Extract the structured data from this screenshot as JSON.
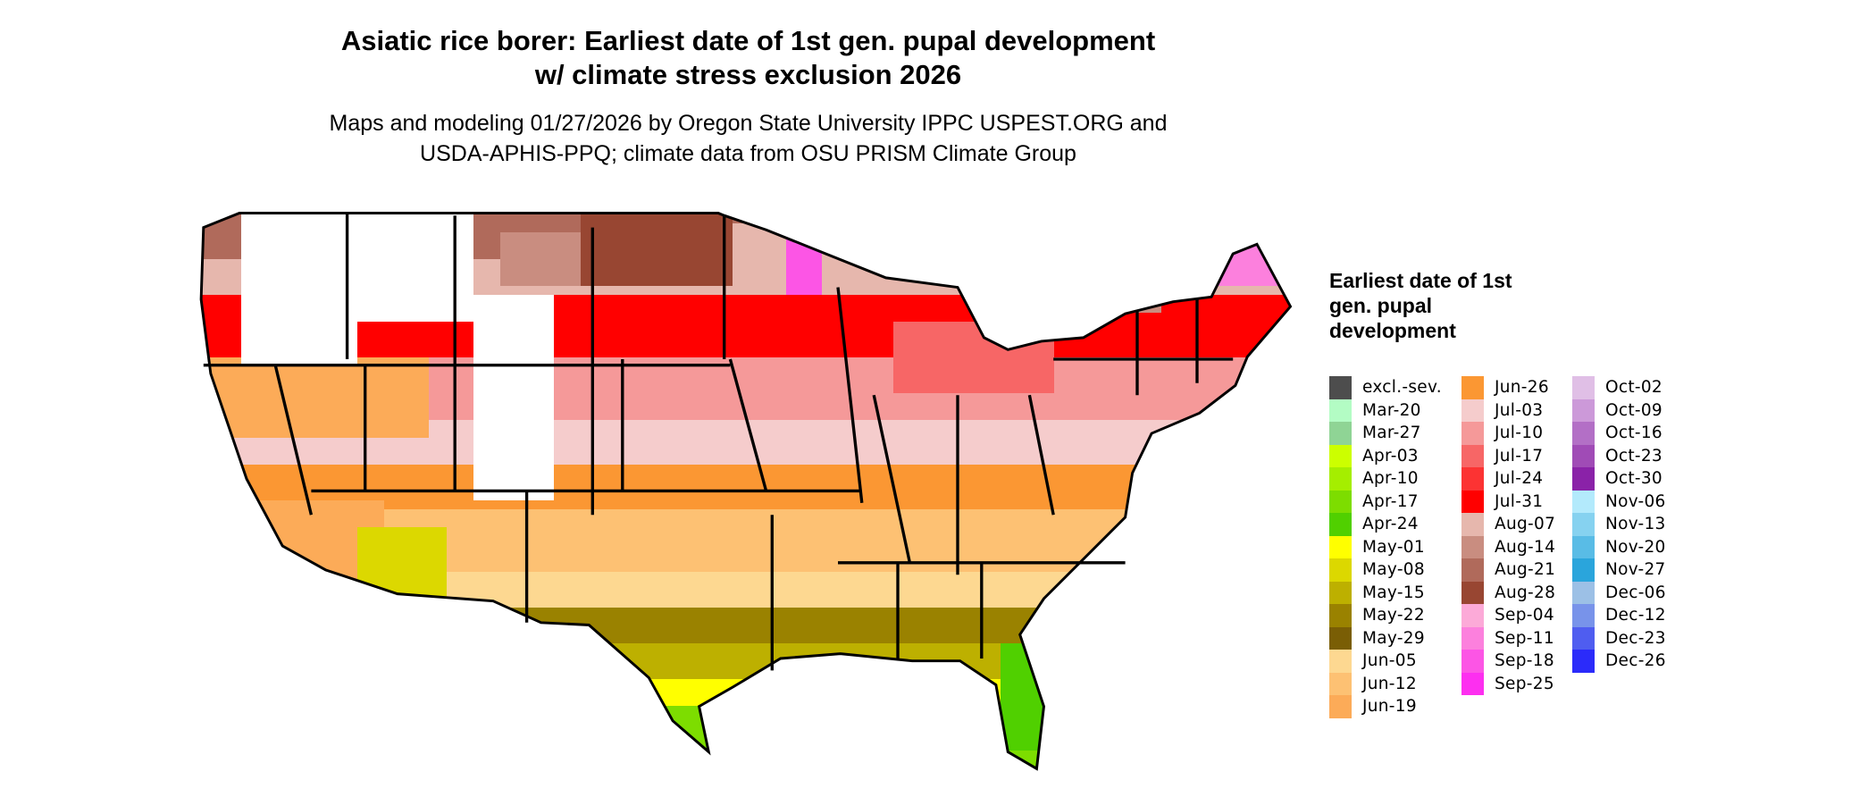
{
  "title_line1": "Asiatic rice borer: Earliest date of 1st gen. pupal development",
  "title_line2": "w/ climate stress exclusion 2026",
  "subtitle_line1": "Maps and modeling 01/27/2026 by Oregon State University IPPC USPEST.ORG and",
  "subtitle_line2": "USDA-APHIS-PPQ; climate data from OSU PRISM Climate Group",
  "legend": {
    "title": "Earliest date of 1st gen. pupal development",
    "items": [
      {
        "label": "excl.-sev.",
        "color": "#4d4d4d"
      },
      {
        "label": "Mar-20",
        "color": "#b3fcc4"
      },
      {
        "label": "Mar-27",
        "color": "#8fd495"
      },
      {
        "label": "Apr-03",
        "color": "#ccff00"
      },
      {
        "label": "Apr-10",
        "color": "#a5ee00"
      },
      {
        "label": "Apr-17",
        "color": "#7ddd00"
      },
      {
        "label": "Apr-24",
        "color": "#50d000"
      },
      {
        "label": "May-01",
        "color": "#ffff00"
      },
      {
        "label": "May-08",
        "color": "#dcd800"
      },
      {
        "label": "May-15",
        "color": "#bdb000"
      },
      {
        "label": "May-22",
        "color": "#9a8200"
      },
      {
        "label": "May-29",
        "color": "#7a5e05"
      },
      {
        "label": "Jun-05",
        "color": "#fdd891"
      },
      {
        "label": "Jun-12",
        "color": "#fdc173"
      },
      {
        "label": "Jun-19",
        "color": "#fcab58"
      },
      {
        "label": "Jun-26",
        "color": "#fb9733"
      },
      {
        "label": "Jul-03",
        "color": "#f5cccc"
      },
      {
        "label": "Jul-10",
        "color": "#f59999"
      },
      {
        "label": "Jul-17",
        "color": "#f76666"
      },
      {
        "label": "Jul-24",
        "color": "#fc3333"
      },
      {
        "label": "Jul-31",
        "color": "#ff0000"
      },
      {
        "label": "Aug-07",
        "color": "#e6b7ad"
      },
      {
        "label": "Aug-14",
        "color": "#c98d80"
      },
      {
        "label": "Aug-21",
        "color": "#b06a5b"
      },
      {
        "label": "Aug-28",
        "color": "#984632"
      },
      {
        "label": "Sep-04",
        "color": "#fcaad8"
      },
      {
        "label": "Sep-11",
        "color": "#fc80dd"
      },
      {
        "label": "Sep-18",
        "color": "#fc55e5"
      },
      {
        "label": "Sep-25",
        "color": "#fd2ff0"
      },
      {
        "label": "Oct-02",
        "color": "#e0bfe6"
      },
      {
        "label": "Oct-09",
        "color": "#cc99d9"
      },
      {
        "label": "Oct-16",
        "color": "#b36fc6"
      },
      {
        "label": "Oct-23",
        "color": "#a04bb6"
      },
      {
        "label": "Oct-30",
        "color": "#8a22a8"
      },
      {
        "label": "Nov-06",
        "color": "#b3eafc"
      },
      {
        "label": "Nov-13",
        "color": "#86d2f0"
      },
      {
        "label": "Nov-20",
        "color": "#59bce6"
      },
      {
        "label": "Nov-27",
        "color": "#2aa5dc"
      },
      {
        "label": "Dec-06",
        "color": "#9cc0e6"
      },
      {
        "label": "Dec-12",
        "color": "#7893ea"
      },
      {
        "label": "Dec-23",
        "color": "#4f5df0"
      },
      {
        "label": "Dec-26",
        "color": "#2b2bfa"
      }
    ]
  }
}
